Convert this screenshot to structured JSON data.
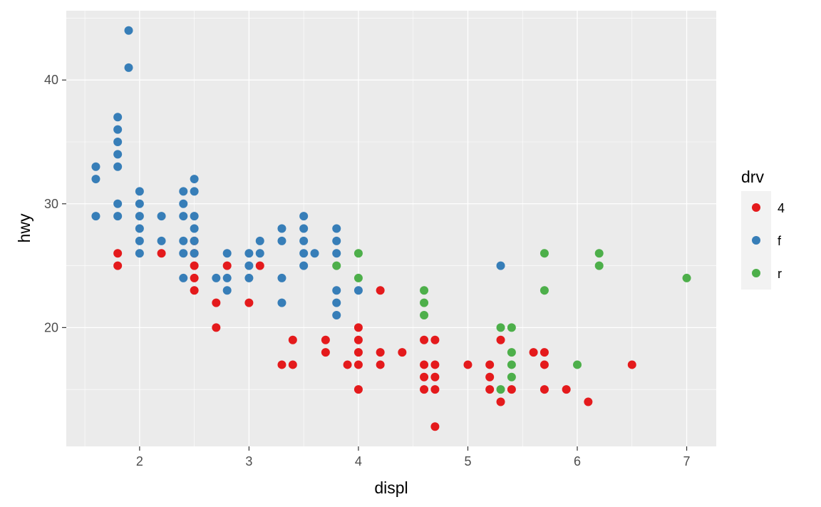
{
  "chart_data": {
    "type": "scatter",
    "title": "",
    "xlabel": "displ",
    "ylabel": "hwy",
    "xlim": [
      1.33,
      7.27
    ],
    "ylim": [
      10.4,
      45.6
    ],
    "x_ticks": [
      2,
      3,
      4,
      5,
      6,
      7
    ],
    "y_ticks": [
      20,
      30,
      40
    ],
    "grid": true,
    "legend": {
      "title": "drv",
      "placement": "right"
    },
    "series": [
      {
        "name": "4",
        "color": "#E41A1C",
        "points": [
          [
            1.8,
            26
          ],
          [
            1.8,
            25
          ],
          [
            2.2,
            26
          ],
          [
            2.5,
            27
          ],
          [
            2.5,
            26
          ],
          [
            2.5,
            25
          ],
          [
            2.5,
            24
          ],
          [
            2.5,
            23
          ],
          [
            2.7,
            22
          ],
          [
            2.7,
            20
          ],
          [
            2.8,
            25
          ],
          [
            3.0,
            22
          ],
          [
            3.1,
            25
          ],
          [
            3.3,
            17
          ],
          [
            3.4,
            19
          ],
          [
            3.4,
            17
          ],
          [
            3.7,
            19
          ],
          [
            3.7,
            18
          ],
          [
            3.9,
            17
          ],
          [
            4.0,
            20
          ],
          [
            4.0,
            19
          ],
          [
            4.0,
            18
          ],
          [
            4.0,
            17
          ],
          [
            4.0,
            15
          ],
          [
            4.2,
            23
          ],
          [
            4.2,
            18
          ],
          [
            4.2,
            17
          ],
          [
            4.4,
            18
          ],
          [
            4.6,
            19
          ],
          [
            4.6,
            17
          ],
          [
            4.6,
            16
          ],
          [
            4.6,
            15
          ],
          [
            4.7,
            19
          ],
          [
            4.7,
            17
          ],
          [
            4.7,
            16
          ],
          [
            4.7,
            15
          ],
          [
            4.7,
            12
          ],
          [
            5.0,
            17
          ],
          [
            5.2,
            17
          ],
          [
            5.2,
            16
          ],
          [
            5.2,
            15
          ],
          [
            5.3,
            19
          ],
          [
            5.3,
            14
          ],
          [
            5.4,
            15
          ],
          [
            5.6,
            18
          ],
          [
            5.7,
            18
          ],
          [
            5.7,
            17
          ],
          [
            5.7,
            15
          ],
          [
            5.9,
            15
          ],
          [
            6.1,
            14
          ],
          [
            6.5,
            17
          ]
        ]
      },
      {
        "name": "f",
        "color": "#377EB8",
        "points": [
          [
            1.6,
            33
          ],
          [
            1.6,
            32
          ],
          [
            1.6,
            29
          ],
          [
            1.8,
            37
          ],
          [
            1.8,
            36
          ],
          [
            1.8,
            35
          ],
          [
            1.8,
            34
          ],
          [
            1.8,
            33
          ],
          [
            1.8,
            30
          ],
          [
            1.8,
            29
          ],
          [
            1.9,
            44
          ],
          [
            1.9,
            41
          ],
          [
            2.0,
            31
          ],
          [
            2.0,
            30
          ],
          [
            2.0,
            29
          ],
          [
            2.0,
            28
          ],
          [
            2.0,
            27
          ],
          [
            2.0,
            26
          ],
          [
            2.2,
            29
          ],
          [
            2.2,
            27
          ],
          [
            2.4,
            31
          ],
          [
            2.4,
            30
          ],
          [
            2.4,
            29
          ],
          [
            2.4,
            27
          ],
          [
            2.4,
            26
          ],
          [
            2.4,
            24
          ],
          [
            2.5,
            32
          ],
          [
            2.5,
            31
          ],
          [
            2.5,
            29
          ],
          [
            2.5,
            28
          ],
          [
            2.5,
            27
          ],
          [
            2.5,
            26
          ],
          [
            2.7,
            24
          ],
          [
            2.8,
            26
          ],
          [
            2.8,
            24
          ],
          [
            2.8,
            23
          ],
          [
            3.0,
            26
          ],
          [
            3.0,
            25
          ],
          [
            3.0,
            24
          ],
          [
            3.1,
            27
          ],
          [
            3.1,
            26
          ],
          [
            3.3,
            28
          ],
          [
            3.3,
            27
          ],
          [
            3.3,
            24
          ],
          [
            3.3,
            22
          ],
          [
            3.5,
            29
          ],
          [
            3.5,
            28
          ],
          [
            3.5,
            27
          ],
          [
            3.5,
            26
          ],
          [
            3.5,
            25
          ],
          [
            3.6,
            26
          ],
          [
            3.8,
            28
          ],
          [
            3.8,
            27
          ],
          [
            3.8,
            26
          ],
          [
            3.8,
            23
          ],
          [
            3.8,
            22
          ],
          [
            3.8,
            21
          ],
          [
            4.0,
            23
          ],
          [
            5.3,
            25
          ]
        ]
      },
      {
        "name": "r",
        "color": "#4DAF4A",
        "points": [
          [
            3.8,
            25
          ],
          [
            4.0,
            26
          ],
          [
            4.0,
            24
          ],
          [
            4.6,
            23
          ],
          [
            4.6,
            22
          ],
          [
            4.6,
            21
          ],
          [
            5.3,
            20
          ],
          [
            5.3,
            15
          ],
          [
            5.4,
            20
          ],
          [
            5.4,
            18
          ],
          [
            5.4,
            17
          ],
          [
            5.4,
            16
          ],
          [
            5.7,
            26
          ],
          [
            5.7,
            23
          ],
          [
            6.0,
            17
          ],
          [
            6.2,
            26
          ],
          [
            6.2,
            25
          ],
          [
            7.0,
            24
          ]
        ]
      }
    ]
  }
}
